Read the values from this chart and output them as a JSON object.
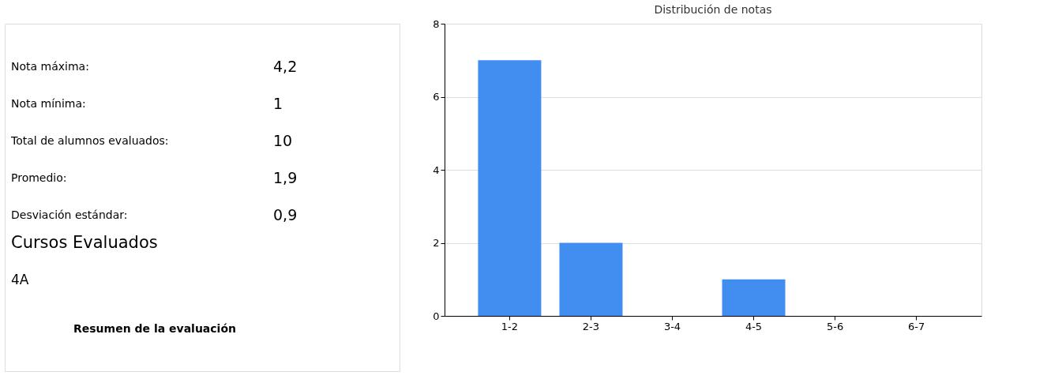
{
  "chart_data": [
    {
      "type": "other",
      "annotations": [
        "Nota máxima:",
        "4,2",
        "Nota mínima:",
        "1",
        "Total de alumnos evaluados:",
        "10",
        "Promedio:",
        "1,9",
        "Desviación estándar:",
        "0,9",
        "Cursos Evaluados",
        "4A",
        "Resumen de la evaluación"
      ]
    },
    {
      "type": "bar",
      "title": "Distribución de notas",
      "categories": [
        "1-2",
        "2-3",
        "3-4",
        "4-5",
        "5-6",
        "6-7"
      ],
      "values": [
        7,
        2,
        0,
        1,
        0,
        0
      ],
      "color": "#428ef0",
      "ylim": [
        0,
        8
      ],
      "yticks": [
        0,
        2,
        4,
        6,
        8
      ],
      "grid": "y"
    }
  ]
}
